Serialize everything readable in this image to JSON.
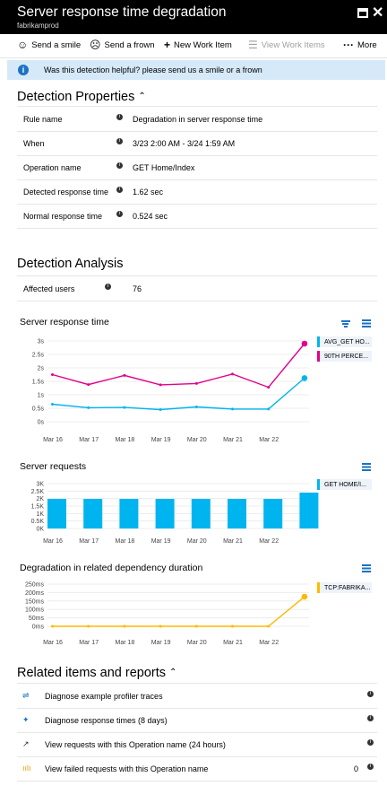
{
  "window": {
    "title": "Server response time degradation",
    "subtitle": "fabrikamprod"
  },
  "toolbar": {
    "smile_label": "Send a smile",
    "frown_label": "Send a frown",
    "new_work_item_label": "New Work Item",
    "view_work_items_label": "View Work Items",
    "more_label": "More"
  },
  "infobar": {
    "text": "Was this detection helpful? please send us a smile or a frown"
  },
  "detection_properties": {
    "heading": "Detection Properties",
    "rows": [
      {
        "key": "Rule name",
        "value": "Degradation in server response time"
      },
      {
        "key": "When",
        "value": "3/23 2:00 AM - 3/24 1:59 AM"
      },
      {
        "key": "Operation name",
        "value": "GET Home/Index"
      },
      {
        "key": "Detected response time",
        "value": "1.62 sec"
      },
      {
        "key": "Normal response time",
        "value": "0.524 sec"
      }
    ]
  },
  "detection_analysis": {
    "heading": "Detection Analysis",
    "affected_users_label": "Affected users",
    "affected_users_value": "76"
  },
  "charts": {
    "response_time": {
      "title": "Server response time",
      "legend": [
        "AVG_GET HO...",
        "90TH PERCE..."
      ],
      "colors": {
        "avg": "#00b4f0",
        "p90": "#e3008c"
      }
    },
    "requests": {
      "title": "Server requests",
      "legend": [
        "GET HOME/I..."
      ],
      "colors": {
        "bar": "#00b4f0"
      }
    },
    "dependency": {
      "title": "Degradation in related dependency duration",
      "legend": [
        "TCP:FABRIKA..."
      ],
      "colors": {
        "line": "#ffb900"
      }
    }
  },
  "chart_data": [
    {
      "type": "line",
      "title": "Server response time",
      "x": [
        "Mar 16",
        "Mar 17",
        "Mar 18",
        "Mar 19",
        "Mar 20",
        "Mar 21",
        "Mar 22",
        ""
      ],
      "ylim": [
        0,
        3
      ],
      "yticks": [
        "0s",
        "0.5s",
        "1s",
        "1.5s",
        "2s",
        "2.5s",
        "3s"
      ],
      "series": [
        {
          "name": "AVG_GET HO...",
          "values": [
            0.65,
            0.52,
            0.53,
            0.45,
            0.55,
            0.47,
            0.47,
            1.62
          ]
        },
        {
          "name": "90TH PERCE...",
          "values": [
            1.75,
            1.38,
            1.72,
            1.37,
            1.42,
            1.77,
            1.28,
            2.9
          ]
        }
      ]
    },
    {
      "type": "bar",
      "title": "Server requests",
      "x": [
        "Mar 16",
        "Mar 17",
        "Mar 18",
        "Mar 19",
        "Mar 20",
        "Mar 21",
        "Mar 22",
        ""
      ],
      "ylim": [
        0,
        3000
      ],
      "yticks": [
        "0K",
        "0.5K",
        "1K",
        "1.5K",
        "2K",
        "2.5K",
        "3K"
      ],
      "series": [
        {
          "name": "GET HOME/I...",
          "values": [
            1980,
            1980,
            1980,
            1980,
            1980,
            1980,
            1980,
            2400
          ]
        }
      ]
    },
    {
      "type": "line",
      "title": "Degradation in related dependency duration",
      "x": [
        "Mar 16",
        "Mar 17",
        "Mar 18",
        "Mar 19",
        "Mar 20",
        "Mar 21",
        "Mar 22",
        ""
      ],
      "ylim": [
        0,
        250
      ],
      "yticks": [
        "0ms",
        "50ms",
        "100ms",
        "150ms",
        "200ms",
        "250ms"
      ],
      "series": [
        {
          "name": "TCP:FABRIKA...",
          "values": [
            0,
            0,
            0,
            0,
            0,
            0,
            0,
            175
          ]
        }
      ]
    }
  ],
  "related": {
    "heading": "Related items and reports",
    "items": [
      {
        "label": "Diagnose example profiler traces",
        "icon": "profiler-icon"
      },
      {
        "label": "Diagnose response times (8 days)",
        "icon": "diagnose-icon"
      },
      {
        "label": "View requests with this Operation name (24 hours)",
        "icon": "arrow-icon"
      },
      {
        "label": "View failed requests with this Operation name",
        "icon": "bars-icon",
        "count": "0"
      }
    ]
  }
}
